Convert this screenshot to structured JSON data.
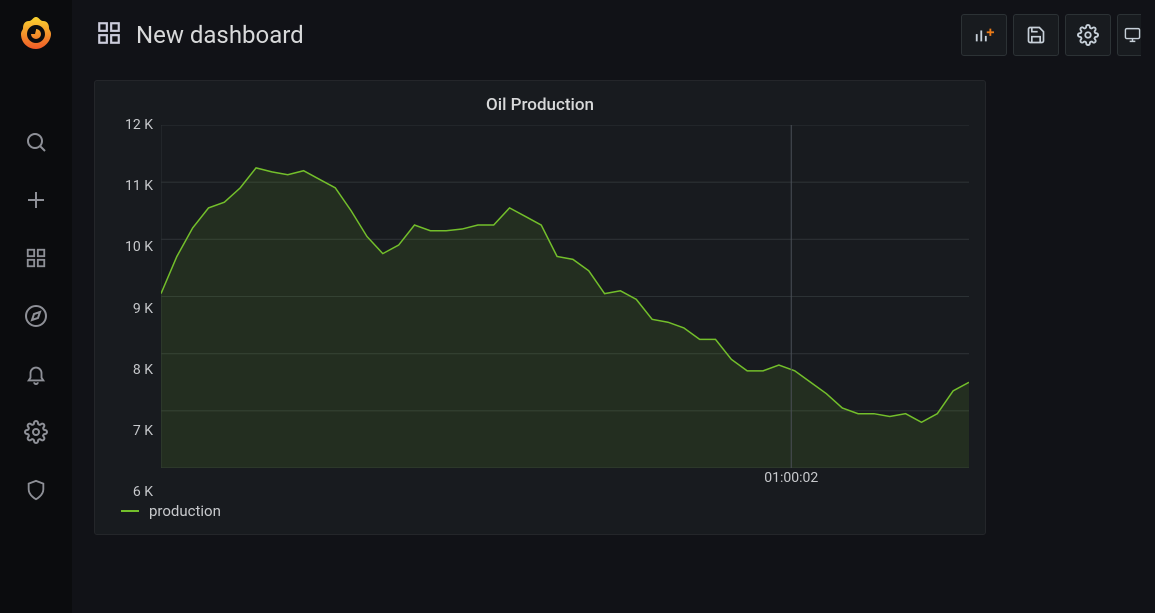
{
  "theme": {
    "bg": "#111217",
    "sidebar_bg": "#0b0c0e",
    "panel_bg": "#181b1f",
    "panel_border": "#24262a",
    "text": "#d8d9da",
    "muted": "#8e9097",
    "grid": "#2c3235",
    "axis_text": "#c7c9cc"
  },
  "header": {
    "title": "New dashboard"
  },
  "panel": {
    "title": "Oil Production"
  },
  "chart": {
    "type": "line-area",
    "series_name": "production",
    "series_color": "#73bf2b",
    "area_opacity": 0.12,
    "line_width": 1.5,
    "background": "#181b1f",
    "grid_color": "#2c3235",
    "yticks": [
      {
        "v": 6000,
        "label": "6 K"
      },
      {
        "v": 7000,
        "label": "7 K"
      },
      {
        "v": 8000,
        "label": "8 K"
      },
      {
        "v": 9000,
        "label": "9 K"
      },
      {
        "v": 10000,
        "label": "10 K"
      },
      {
        "v": 11000,
        "label": "11 K"
      },
      {
        "v": 12000,
        "label": "12 K"
      }
    ],
    "ylim": [
      6000,
      12000
    ],
    "xlim": [
      0,
      1
    ],
    "xticks": [
      {
        "x": 0.78,
        "label": "01:00:02"
      }
    ],
    "cursor_x": 0.78,
    "values": [
      9050,
      9700,
      10200,
      10550,
      10650,
      10900,
      11250,
      11180,
      11130,
      11200,
      11050,
      10900,
      10500,
      10050,
      9750,
      9900,
      10250,
      10150,
      10150,
      10180,
      10250,
      10250,
      10550,
      10400,
      10250,
      9700,
      9650,
      9450,
      9050,
      9100,
      8950,
      8600,
      8550,
      8450,
      8250,
      8250,
      7900,
      7700,
      7700,
      7800,
      7700,
      7500,
      7300,
      7050,
      6950,
      6950,
      6900,
      6950,
      6800,
      6950,
      7350,
      7500
    ]
  },
  "legend": {
    "label": "production"
  }
}
